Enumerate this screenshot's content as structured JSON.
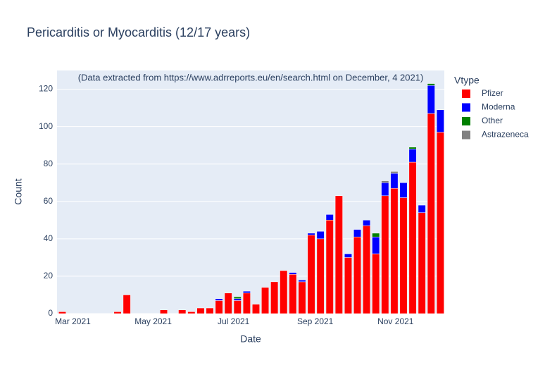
{
  "chart_data": {
    "type": "bar",
    "barmode": "stack",
    "title": "Pericarditis or Myocarditis (12/17 years)",
    "annotation": "(Data extracted from https://www.adrreports.eu/en/search.html on December, 4 2021)",
    "x_label": "Date",
    "y_label": "Count",
    "legend_title": "Vtype",
    "x": [
      "2021-02-21",
      "2021-04-04",
      "2021-04-11",
      "2021-05-09",
      "2021-05-23",
      "2021-05-30",
      "2021-06-06",
      "2021-06-13",
      "2021-06-20",
      "2021-06-27",
      "2021-07-04",
      "2021-07-11",
      "2021-07-18",
      "2021-07-25",
      "2021-08-01",
      "2021-08-08",
      "2021-08-15",
      "2021-08-22",
      "2021-08-29",
      "2021-09-05",
      "2021-09-12",
      "2021-09-19",
      "2021-09-26",
      "2021-10-03",
      "2021-10-10",
      "2021-10-17",
      "2021-10-24",
      "2021-10-31",
      "2021-11-07",
      "2021-11-14",
      "2021-11-21",
      "2021-11-28",
      "2021-12-05"
    ],
    "series": [
      {
        "name": "Pfizer",
        "color": "#ff0000",
        "values": [
          1,
          1,
          10,
          2,
          2,
          1,
          3,
          3,
          7,
          11,
          7,
          11,
          5,
          14,
          17,
          23,
          21,
          17,
          42,
          40,
          50,
          63,
          30,
          41,
          47,
          32,
          63,
          67,
          62,
          81,
          54,
          107,
          97
        ]
      },
      {
        "name": "Moderna",
        "color": "#0000ff",
        "values": [
          0,
          0,
          0,
          0,
          0,
          0,
          0,
          0,
          1,
          0,
          1,
          1,
          0,
          0,
          0,
          0,
          1,
          1,
          1,
          4,
          3,
          0,
          2,
          4,
          3,
          9,
          7,
          8,
          8,
          7,
          4,
          15,
          12
        ]
      },
      {
        "name": "Other",
        "color": "#008000",
        "values": [
          0,
          0,
          0,
          0,
          0,
          0,
          0,
          0,
          0,
          0,
          1,
          0,
          0,
          0,
          0,
          0,
          0,
          0,
          0,
          0,
          0,
          0,
          0,
          0,
          0,
          2,
          0,
          0,
          0,
          1,
          0,
          1,
          0
        ]
      },
      {
        "name": "Astrazeneca",
        "color": "#808080",
        "values": [
          0,
          0,
          0,
          0,
          0,
          0,
          0,
          0,
          0,
          0,
          0,
          0,
          0,
          0,
          0,
          0,
          0,
          0,
          0,
          0,
          0,
          0,
          0,
          0,
          0,
          0,
          1,
          1,
          0,
          0,
          0,
          0,
          0
        ]
      }
    ],
    "xlim": [
      "2021-02-17",
      "2021-12-08"
    ],
    "xticks": [
      {
        "value": "2021-03-01",
        "label": "Mar 2021"
      },
      {
        "value": "2021-05-01",
        "label": "May 2021"
      },
      {
        "value": "2021-07-01",
        "label": "Jul 2021"
      },
      {
        "value": "2021-09-01",
        "label": "Sep 2021"
      },
      {
        "value": "2021-11-01",
        "label": "Nov 2021"
      }
    ],
    "ylim": [
      0,
      130
    ],
    "yticks": [
      0,
      20,
      40,
      60,
      80,
      100,
      120
    ],
    "grid": true,
    "legend": "right"
  }
}
